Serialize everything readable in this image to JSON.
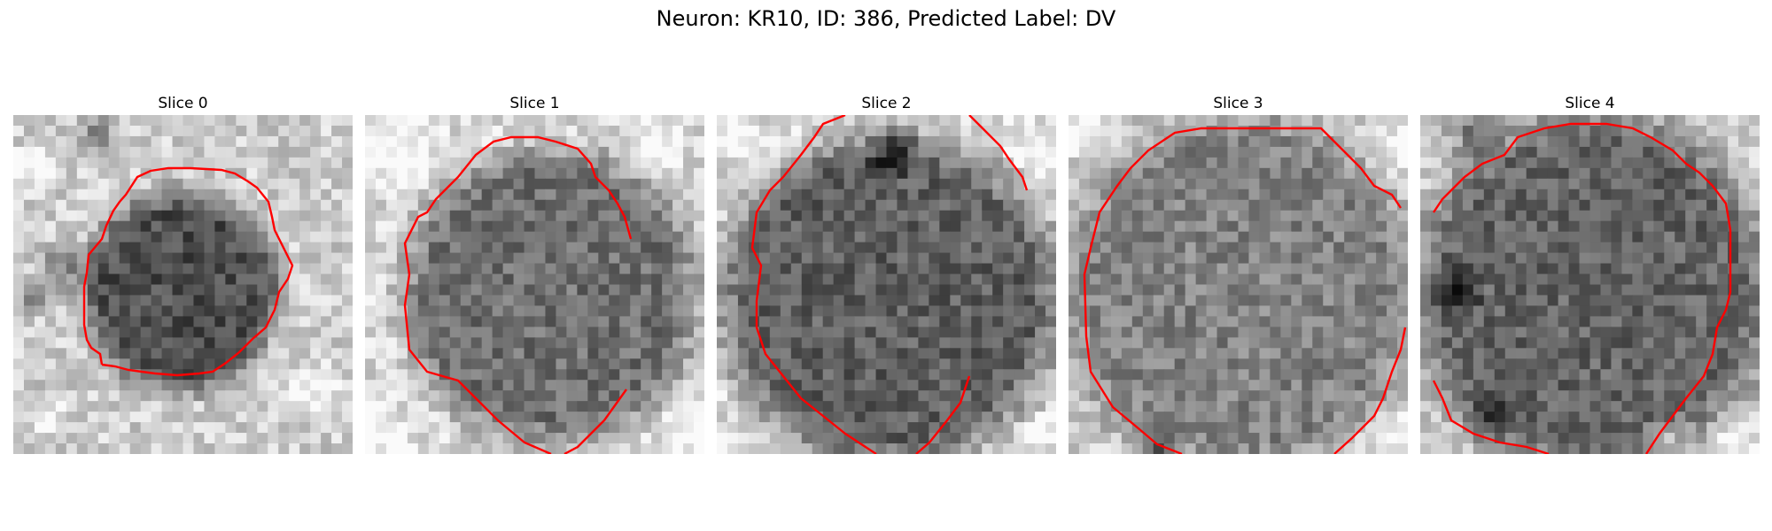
{
  "figure": {
    "title": "Neuron: KR10, ID: 386, Predicted Label: DV"
  },
  "contour_color": "#ff0000",
  "slices": [
    {
      "title": "Slice 0"
    },
    {
      "title": "Slice 1"
    },
    {
      "title": "Slice 2"
    },
    {
      "title": "Slice 3"
    },
    {
      "title": "Slice 4"
    }
  ]
}
